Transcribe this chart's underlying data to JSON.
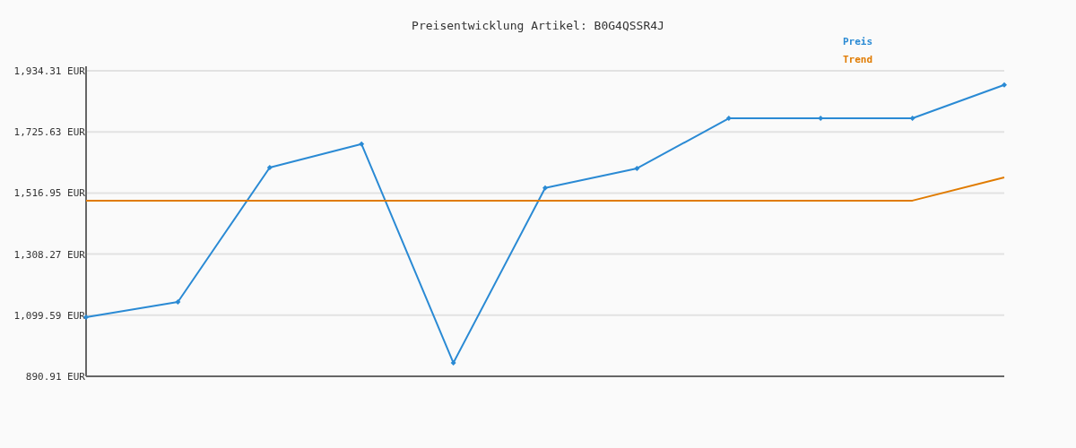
{
  "chart_data": {
    "type": "line",
    "title": "Preisentwicklung Artikel: B0G4QSSR4J",
    "categories": [
      null,
      null,
      null,
      null,
      null,
      null,
      null,
      null,
      null,
      null,
      null
    ],
    "series": [
      {
        "name": "Preis",
        "color": "#2a8ad4",
        "marker": "diamond",
        "values": [
          1093,
          1145,
          1604,
          1684,
          937,
          1534,
          1601,
          1772,
          1772,
          1772,
          1886
        ]
      },
      {
        "name": "Trend",
        "color": "#e07b00",
        "marker": "none",
        "values": [
          1491,
          1491,
          1491,
          1491,
          1491,
          1491,
          1491,
          1491,
          1491,
          1491,
          1570
        ]
      }
    ],
    "ylim": [
      890.91,
      1934.31
    ],
    "yticks": [
      {
        "value": 890.91,
        "label": "890.91 EUR"
      },
      {
        "value": 1099.59,
        "label": "1,099.59 EUR"
      },
      {
        "value": 1308.27,
        "label": "1,308.27 EUR"
      },
      {
        "value": 1516.95,
        "label": "1,516.95 EUR"
      },
      {
        "value": 1725.63,
        "label": "1,725.63 EUR"
      },
      {
        "value": 1934.31,
        "label": "1,934.31 EUR"
      }
    ],
    "grid": "y",
    "legend": "top right"
  }
}
